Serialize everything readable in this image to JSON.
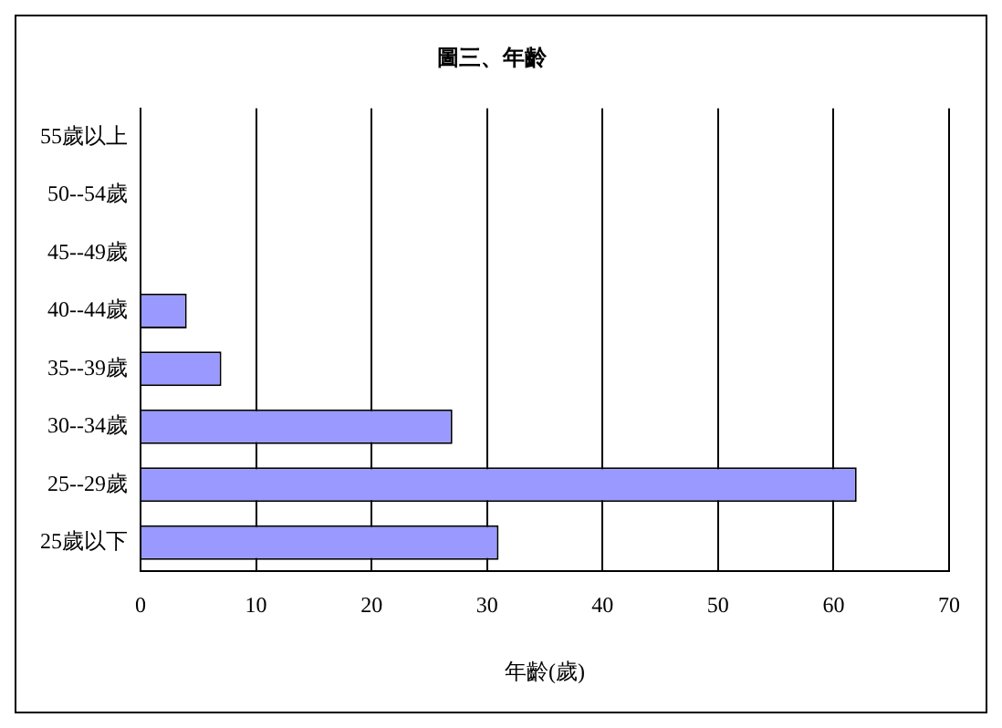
{
  "chart_data": {
    "type": "bar",
    "orientation": "horizontal",
    "title": "圖三、年齡",
    "xlabel": "年齡(歲)",
    "categories": [
      "55歲以上",
      "50--54歲",
      "45--49歲",
      "40--44歲",
      "35--39歲",
      "30--34歲",
      "25--29歲",
      "25歲以下"
    ],
    "values": [
      0,
      0,
      0,
      4,
      7,
      27,
      62,
      31
    ],
    "color": "#9999ff",
    "xlim": [
      0,
      70
    ],
    "xticks": [
      0,
      10,
      20,
      30,
      40,
      50,
      60,
      70
    ],
    "grid": "x",
    "legend": false
  }
}
